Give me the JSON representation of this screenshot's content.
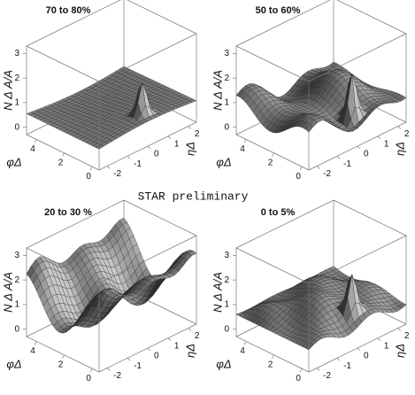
{
  "annotation": "STAR preliminary",
  "chart_data": [
    {
      "type": "surface",
      "title": "70 to 80%",
      "zlabel": "N Δ A/A",
      "xlabel": "φΔ",
      "ylabel": "ηΔ",
      "zlim": [
        -0.3,
        3.3
      ],
      "zticks": [
        0,
        1,
        2,
        3
      ],
      "xlim": [
        -0.5,
        4.7
      ],
      "xticks": [
        0,
        2,
        4
      ],
      "ylim": [
        -2.4,
        2.4
      ],
      "yticks": [
        -2,
        -1,
        0,
        1,
        2
      ]
    },
    {
      "type": "surface",
      "title": "50 to 60%",
      "zlabel": "N Δ A/A",
      "xlabel": "φΔ",
      "ylabel": "ηΔ",
      "zlim": [
        -0.3,
        3.3
      ],
      "zticks": [
        0,
        1,
        2,
        3
      ],
      "xlim": [
        -0.5,
        4.7
      ],
      "xticks": [
        0,
        2,
        4
      ],
      "ylim": [
        -2.4,
        2.4
      ],
      "yticks": [
        -2,
        -1,
        0,
        1,
        2
      ]
    },
    {
      "type": "surface",
      "title": "20 to 30 %",
      "zlabel": "N Δ A/A",
      "xlabel": "φΔ",
      "ylabel": "ηΔ",
      "zlim": [
        -0.3,
        3.3
      ],
      "zticks": [
        0,
        1,
        2,
        3
      ],
      "xlim": [
        -0.5,
        4.7
      ],
      "xticks": [
        0,
        2,
        4
      ],
      "ylim": [
        -2.4,
        2.4
      ],
      "yticks": [
        -2,
        -1,
        0,
        1,
        2
      ]
    },
    {
      "type": "surface",
      "title": "0 to 5%",
      "zlabel": "N Δ A/A",
      "xlabel": "φΔ",
      "ylabel": "ηΔ",
      "zlim": [
        -0.3,
        3.3
      ],
      "zticks": [
        0,
        1,
        2,
        3
      ],
      "xlim": [
        -0.5,
        4.7
      ],
      "xticks": [
        0,
        2,
        4
      ],
      "ylim": [
        -2.4,
        2.4
      ],
      "yticks": [
        -2,
        -1,
        0,
        1,
        2
      ]
    }
  ]
}
